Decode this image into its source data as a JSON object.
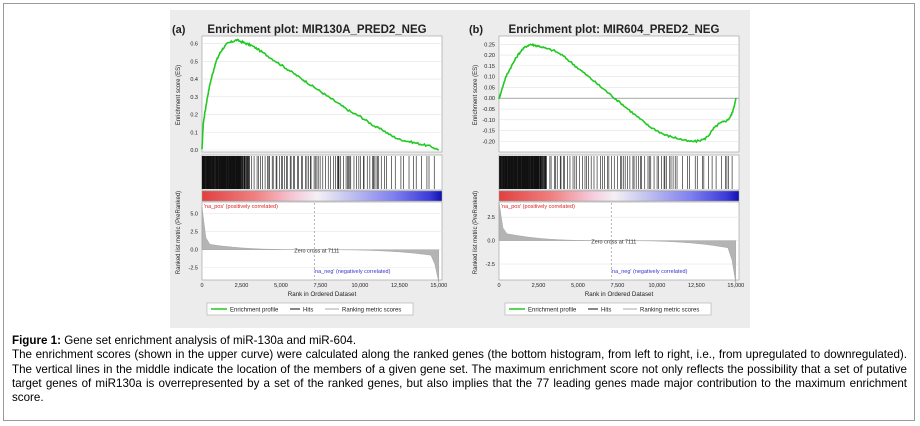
{
  "colors": {
    "enrichment_line": "#22c922",
    "panel_bg": "#ececec",
    "pos_label": "#dd2222",
    "neg_label": "#3333cc",
    "metric_fill": "#b4b4b4",
    "axis_text": "#222222"
  },
  "chart_data": [
    {
      "type": "line",
      "panel_label": "(a)",
      "title": "Enrichment plot: MIR130A_PRED2_NEG",
      "ylabel_es": "Enrichment score (ES)",
      "ylabel_metric": "Ranked list metric (PreRanked)",
      "xlabel": "Rank in Ordered Dataset",
      "es_ticks": [
        "0.6",
        "0.5",
        "0.4",
        "0.3",
        "0.2",
        "0.1",
        "0.0"
      ],
      "es_ylim": [
        0,
        0.62
      ],
      "metric_ticks": [
        "5.0",
        "2.5",
        "0.0",
        "-2.5"
      ],
      "metric_ylim": [
        -4.2,
        6.2
      ],
      "x_ticks": [
        "0",
        "2,500",
        "5,000",
        "7,500",
        "10,000",
        "12,500",
        "15,000"
      ],
      "xlim": [
        0,
        15200
      ],
      "es_curve": {
        "x": [
          0,
          80,
          200,
          350,
          500,
          700,
          900,
          1100,
          1300,
          1600,
          1900,
          2200,
          2500,
          2800,
          3100,
          3500,
          4000,
          4500,
          5000,
          5500,
          6000,
          6500,
          7000,
          7500,
          8000,
          8500,
          9000,
          9500,
          10000,
          10500,
          11000,
          11500,
          12000,
          12500,
          13000,
          13500,
          14000,
          14500,
          15000
        ],
        "y": [
          0.0,
          0.15,
          0.22,
          0.3,
          0.37,
          0.44,
          0.5,
          0.54,
          0.57,
          0.6,
          0.61,
          0.62,
          0.61,
          0.6,
          0.59,
          0.57,
          0.54,
          0.51,
          0.48,
          0.45,
          0.42,
          0.39,
          0.36,
          0.33,
          0.3,
          0.27,
          0.24,
          0.21,
          0.19,
          0.16,
          0.13,
          0.11,
          0.08,
          0.06,
          0.05,
          0.04,
          0.03,
          0.02,
          0.0
        ]
      },
      "zero_cross_rank": 7111,
      "zero_cross_label": "Zero cross at 7111",
      "pos_label": "'na_pos' (positively correlated)",
      "neg_label": "'na_neg' (negatively correlated)",
      "legend": [
        "Enrichment profile",
        "Hits",
        "Ranking metric scores"
      ]
    },
    {
      "type": "line",
      "panel_label": "(b)",
      "title": "Enrichment plot: MIR604_PRED2_NEG",
      "ylabel_es": "Enrichment score (ES)",
      "ylabel_metric": "Ranked list metric (PreRanked)",
      "xlabel": "Rank in Ordered Dataset",
      "es_ticks": [
        "0.25",
        "0.20",
        "0.15",
        "0.10",
        "0.05",
        "0.00",
        "-0.05",
        "-0.10",
        "-0.15",
        "-0.20"
      ],
      "es_ylim": [
        -0.24,
        0.27
      ],
      "metric_ticks": [
        "2.5",
        "0.0",
        "-2.5"
      ],
      "metric_ylim": [
        -4.2,
        3.8
      ],
      "x_ticks": [
        "0",
        "2,500",
        "5,000",
        "7,500",
        "10,000",
        "12,500",
        "15,000"
      ],
      "xlim": [
        0,
        15200
      ],
      "es_curve": {
        "x": [
          0,
          100,
          300,
          500,
          800,
          1100,
          1400,
          1700,
          2000,
          2300,
          2600,
          3000,
          3500,
          4000,
          4500,
          5000,
          5500,
          6000,
          6500,
          7000,
          7500,
          8000,
          8500,
          9000,
          9500,
          10000,
          10500,
          11000,
          11500,
          12000,
          12500,
          13000,
          13300,
          13600,
          13900,
          14200,
          14500,
          14700,
          14850,
          15000
        ],
        "y": [
          0.0,
          0.02,
          0.07,
          0.11,
          0.15,
          0.19,
          0.22,
          0.24,
          0.25,
          0.245,
          0.24,
          0.23,
          0.22,
          0.2,
          0.17,
          0.14,
          0.11,
          0.08,
          0.05,
          0.02,
          -0.01,
          -0.04,
          -0.07,
          -0.1,
          -0.13,
          -0.15,
          -0.17,
          -0.18,
          -0.19,
          -0.2,
          -0.2,
          -0.19,
          -0.17,
          -0.14,
          -0.12,
          -0.11,
          -0.1,
          -0.08,
          -0.05,
          0.0
        ]
      },
      "zero_cross_rank": 7111,
      "zero_cross_label": "Zero cross at 7111",
      "pos_label": "'na_pos' (positively correlated)",
      "neg_label": "'na_neg' (negatively correlated)",
      "legend": [
        "Enrichment profile",
        "Hits",
        "Ranking metric scores"
      ]
    }
  ],
  "caption": {
    "label": "Figure 1:",
    "line1": " Gene set enrichment analysis of miR-130a and miR-604.",
    "body": "The enrichment scores (shown in the upper curve) were calculated along the ranked genes (the bottom histogram, from left to right, i.e., from upregulated to downregulated). The vertical lines in the middle indicate the location of the members of a given gene set. The maximum enrichment score not only reflects the possibility that a set of putative target genes of miR130a is overrepresented by a set of the ranked genes, but also implies that the 77 leading genes made major contribution to the maximum enrichment score."
  }
}
